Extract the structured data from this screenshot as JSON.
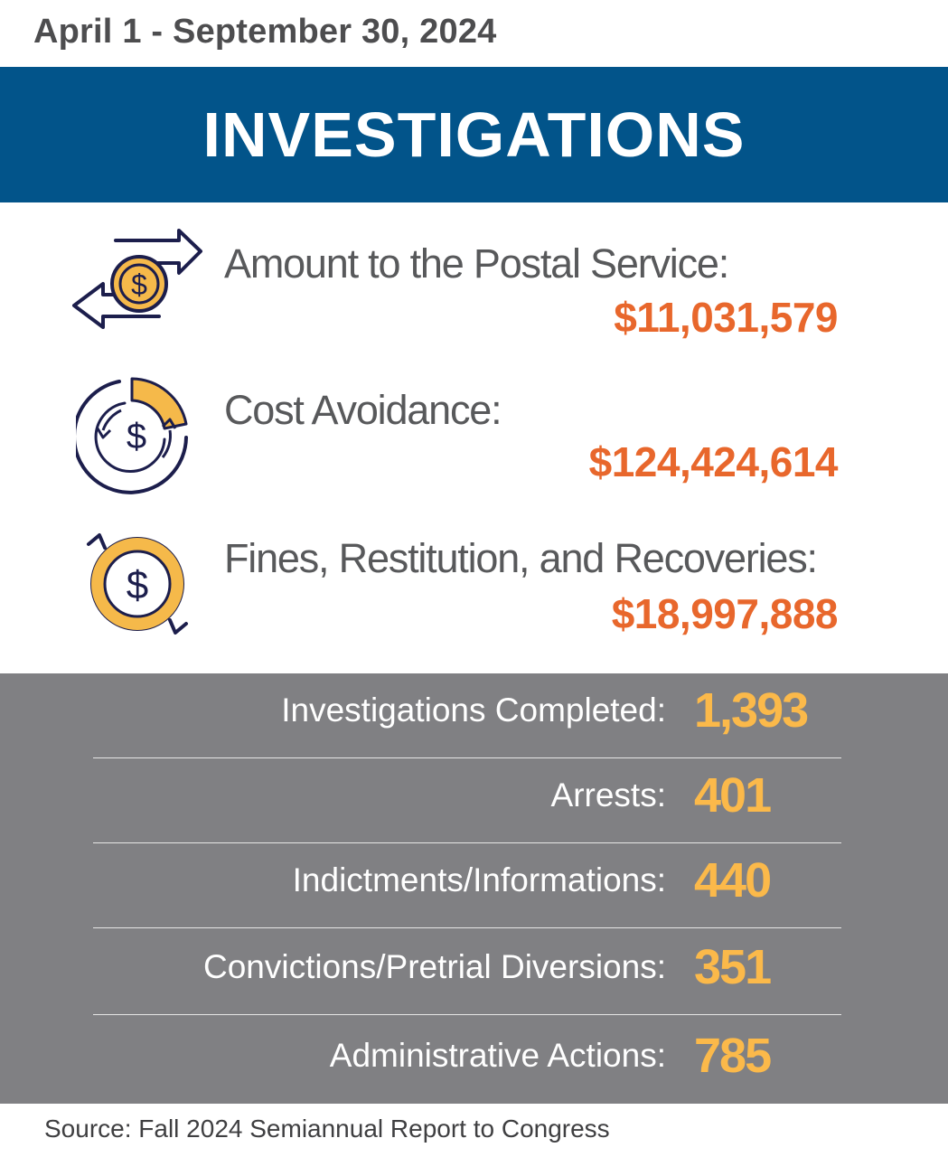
{
  "header": {
    "date_range": "April 1 - September 30, 2024",
    "title": "INVESTIGATIONS"
  },
  "monetary": [
    {
      "label": "Amount to the Postal Service:",
      "value": "$11,031,579",
      "icon": "exchange-dollar-icon"
    },
    {
      "label": "Cost Avoidance:",
      "value": "$124,424,614",
      "icon": "cycle-dollar-icon"
    },
    {
      "label": "Fines, Restitution, and Recoveries:",
      "value": "$18,997,888",
      "icon": "recovery-dollar-icon"
    }
  ],
  "stats": [
    {
      "label": "Investigations Completed:",
      "value": "1,393"
    },
    {
      "label": "Arrests:",
      "value": "401"
    },
    {
      "label": "Indictments/Informations:",
      "value": "440"
    },
    {
      "label": "Convictions/Pretrial Diversions:",
      "value": "351"
    },
    {
      "label": "Administrative Actions:",
      "value": "785"
    }
  ],
  "footer": {
    "source": "Source: Fall 2024 Semiannual Report to Congress"
  },
  "colors": {
    "banner": "#02548a",
    "money_value": "#e8672c",
    "stat_value": "#fbb94a",
    "panel": "#808083",
    "icon_navy": "#1c1e4c",
    "icon_gold": "#f5b94a"
  }
}
